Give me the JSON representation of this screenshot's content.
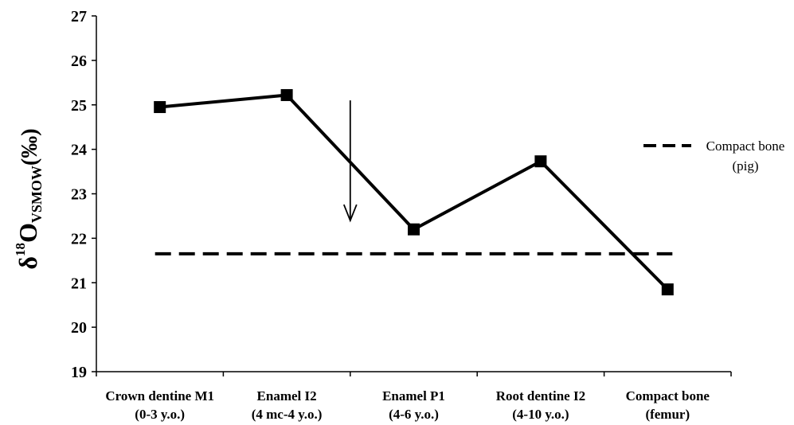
{
  "chart_data": {
    "type": "line",
    "categories": [
      [
        "Crown dentine M1",
        "(0-3 y.o.)"
      ],
      [
        "Enamel I2",
        "(4 mc-4 y.o.)"
      ],
      [
        "Enamel P1",
        "(4-6 y.o.)"
      ],
      [
        "Root dentine I2",
        "(4-10 y.o.)"
      ],
      [
        "Compact bone",
        "(femur)"
      ]
    ],
    "series": [
      {
        "values": [
          24.95,
          25.22,
          22.2,
          23.73,
          20.85
        ],
        "color": "#000000",
        "marker": "square"
      }
    ],
    "reference_line": {
      "value": 21.65,
      "style": "dashed",
      "label": [
        "Compact bone",
        "(pig)"
      ]
    },
    "arrow_annotation": {
      "x_between_categories": [
        1,
        2
      ],
      "from": 25.1,
      "to": 22.4
    },
    "ylabel": {
      "prefix": "δ",
      "sup": "18",
      "main": "O",
      "sub": "VSMOW",
      "unit": "(‰)"
    },
    "ylim": [
      19,
      27
    ],
    "yticks": [
      "19",
      "20",
      "21",
      "22",
      "23",
      "24",
      "25",
      "26",
      "27"
    ],
    "grid": false,
    "legend_position": "right"
  }
}
